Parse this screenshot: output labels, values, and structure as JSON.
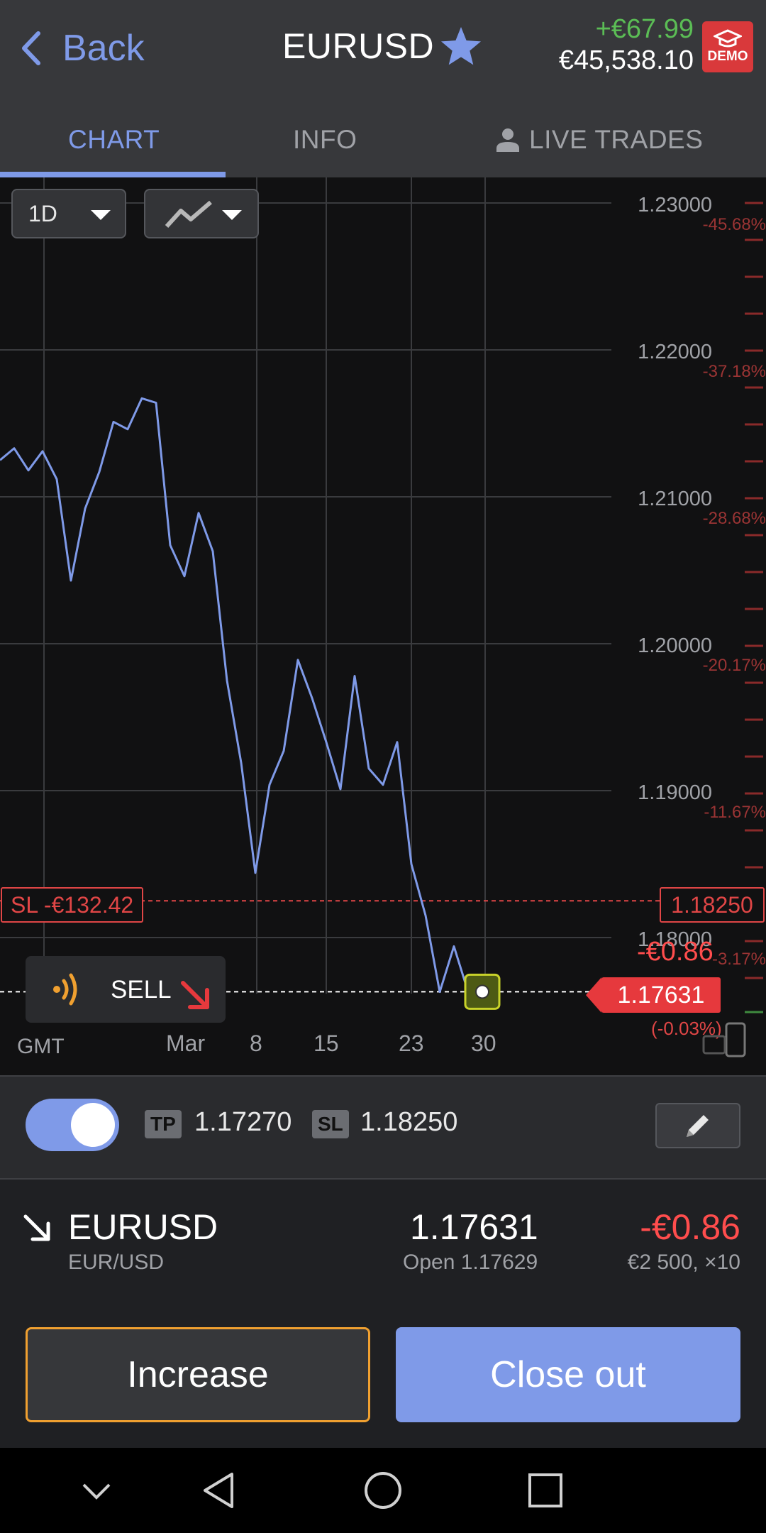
{
  "header": {
    "back_label": "Back",
    "instrument": "EURUSD",
    "pnl": "+€67.99",
    "balance": "€45,538.10",
    "demo_label": "DEMO"
  },
  "tabs": [
    {
      "label": "CHART",
      "active": true
    },
    {
      "label": "INFO",
      "active": false
    },
    {
      "label": "LIVE TRADES",
      "active": false
    }
  ],
  "chart_controls": {
    "period": "1D",
    "chart_type_icon": "line-chart-icon"
  },
  "chart_data": {
    "type": "line",
    "x_ticks": [
      "Mar",
      "8",
      "15",
      "23",
      "30"
    ],
    "x_label": "GMT",
    "y_ticks": [
      "1.23000",
      "1.22000",
      "1.21000",
      "1.20000",
      "1.19000",
      "1.18000"
    ],
    "y_pct_ticks": [
      "-45.68%",
      "-37.18%",
      "-28.68%",
      "-20.17%",
      "-11.67%",
      "-3.17%"
    ],
    "ylim": [
      1.172,
      1.2315
    ],
    "series": [
      {
        "values": [
          1.2125,
          1.2133,
          1.2118,
          1.2131,
          1.2112,
          1.2043,
          1.2092,
          1.2117,
          1.2151,
          1.2146,
          1.2167,
          1.2164,
          1.2067,
          1.2046,
          1.2089,
          1.2063,
          1.1975,
          1.1919,
          1.1844,
          1.1904,
          1.1927,
          1.1989,
          1.1963,
          1.1933,
          1.1901,
          1.1978,
          1.1915,
          1.1904,
          1.1933,
          1.185,
          1.1815,
          1.1763,
          1.1794,
          1.1763
        ]
      }
    ],
    "stop_loss": {
      "label": "SL -€132.42",
      "price": "1.18250",
      "value": 1.1825
    },
    "current": {
      "price": "1.17631",
      "value": 1.17631,
      "pnl": "-€0.86",
      "pct": "(-0.03%)"
    }
  },
  "sell_badge": {
    "label": "SELL"
  },
  "tpsl": {
    "enabled": true,
    "tp_label": "TP",
    "tp_value": "1.17270",
    "sl_label": "SL",
    "sl_value": "1.18250"
  },
  "position": {
    "symbol": "EURUSD",
    "pair": "EUR/USD",
    "price": "1.17631",
    "open": "Open 1.17629",
    "pnl": "-€0.86",
    "size": "€2 500, ×10"
  },
  "actions": {
    "increase": "Increase",
    "close_out": "Close out"
  },
  "colors": {
    "accent": "#7f9ae8",
    "loss": "#ff4d4d",
    "profit": "#5bbd55",
    "increase_border": "#f0a030"
  }
}
